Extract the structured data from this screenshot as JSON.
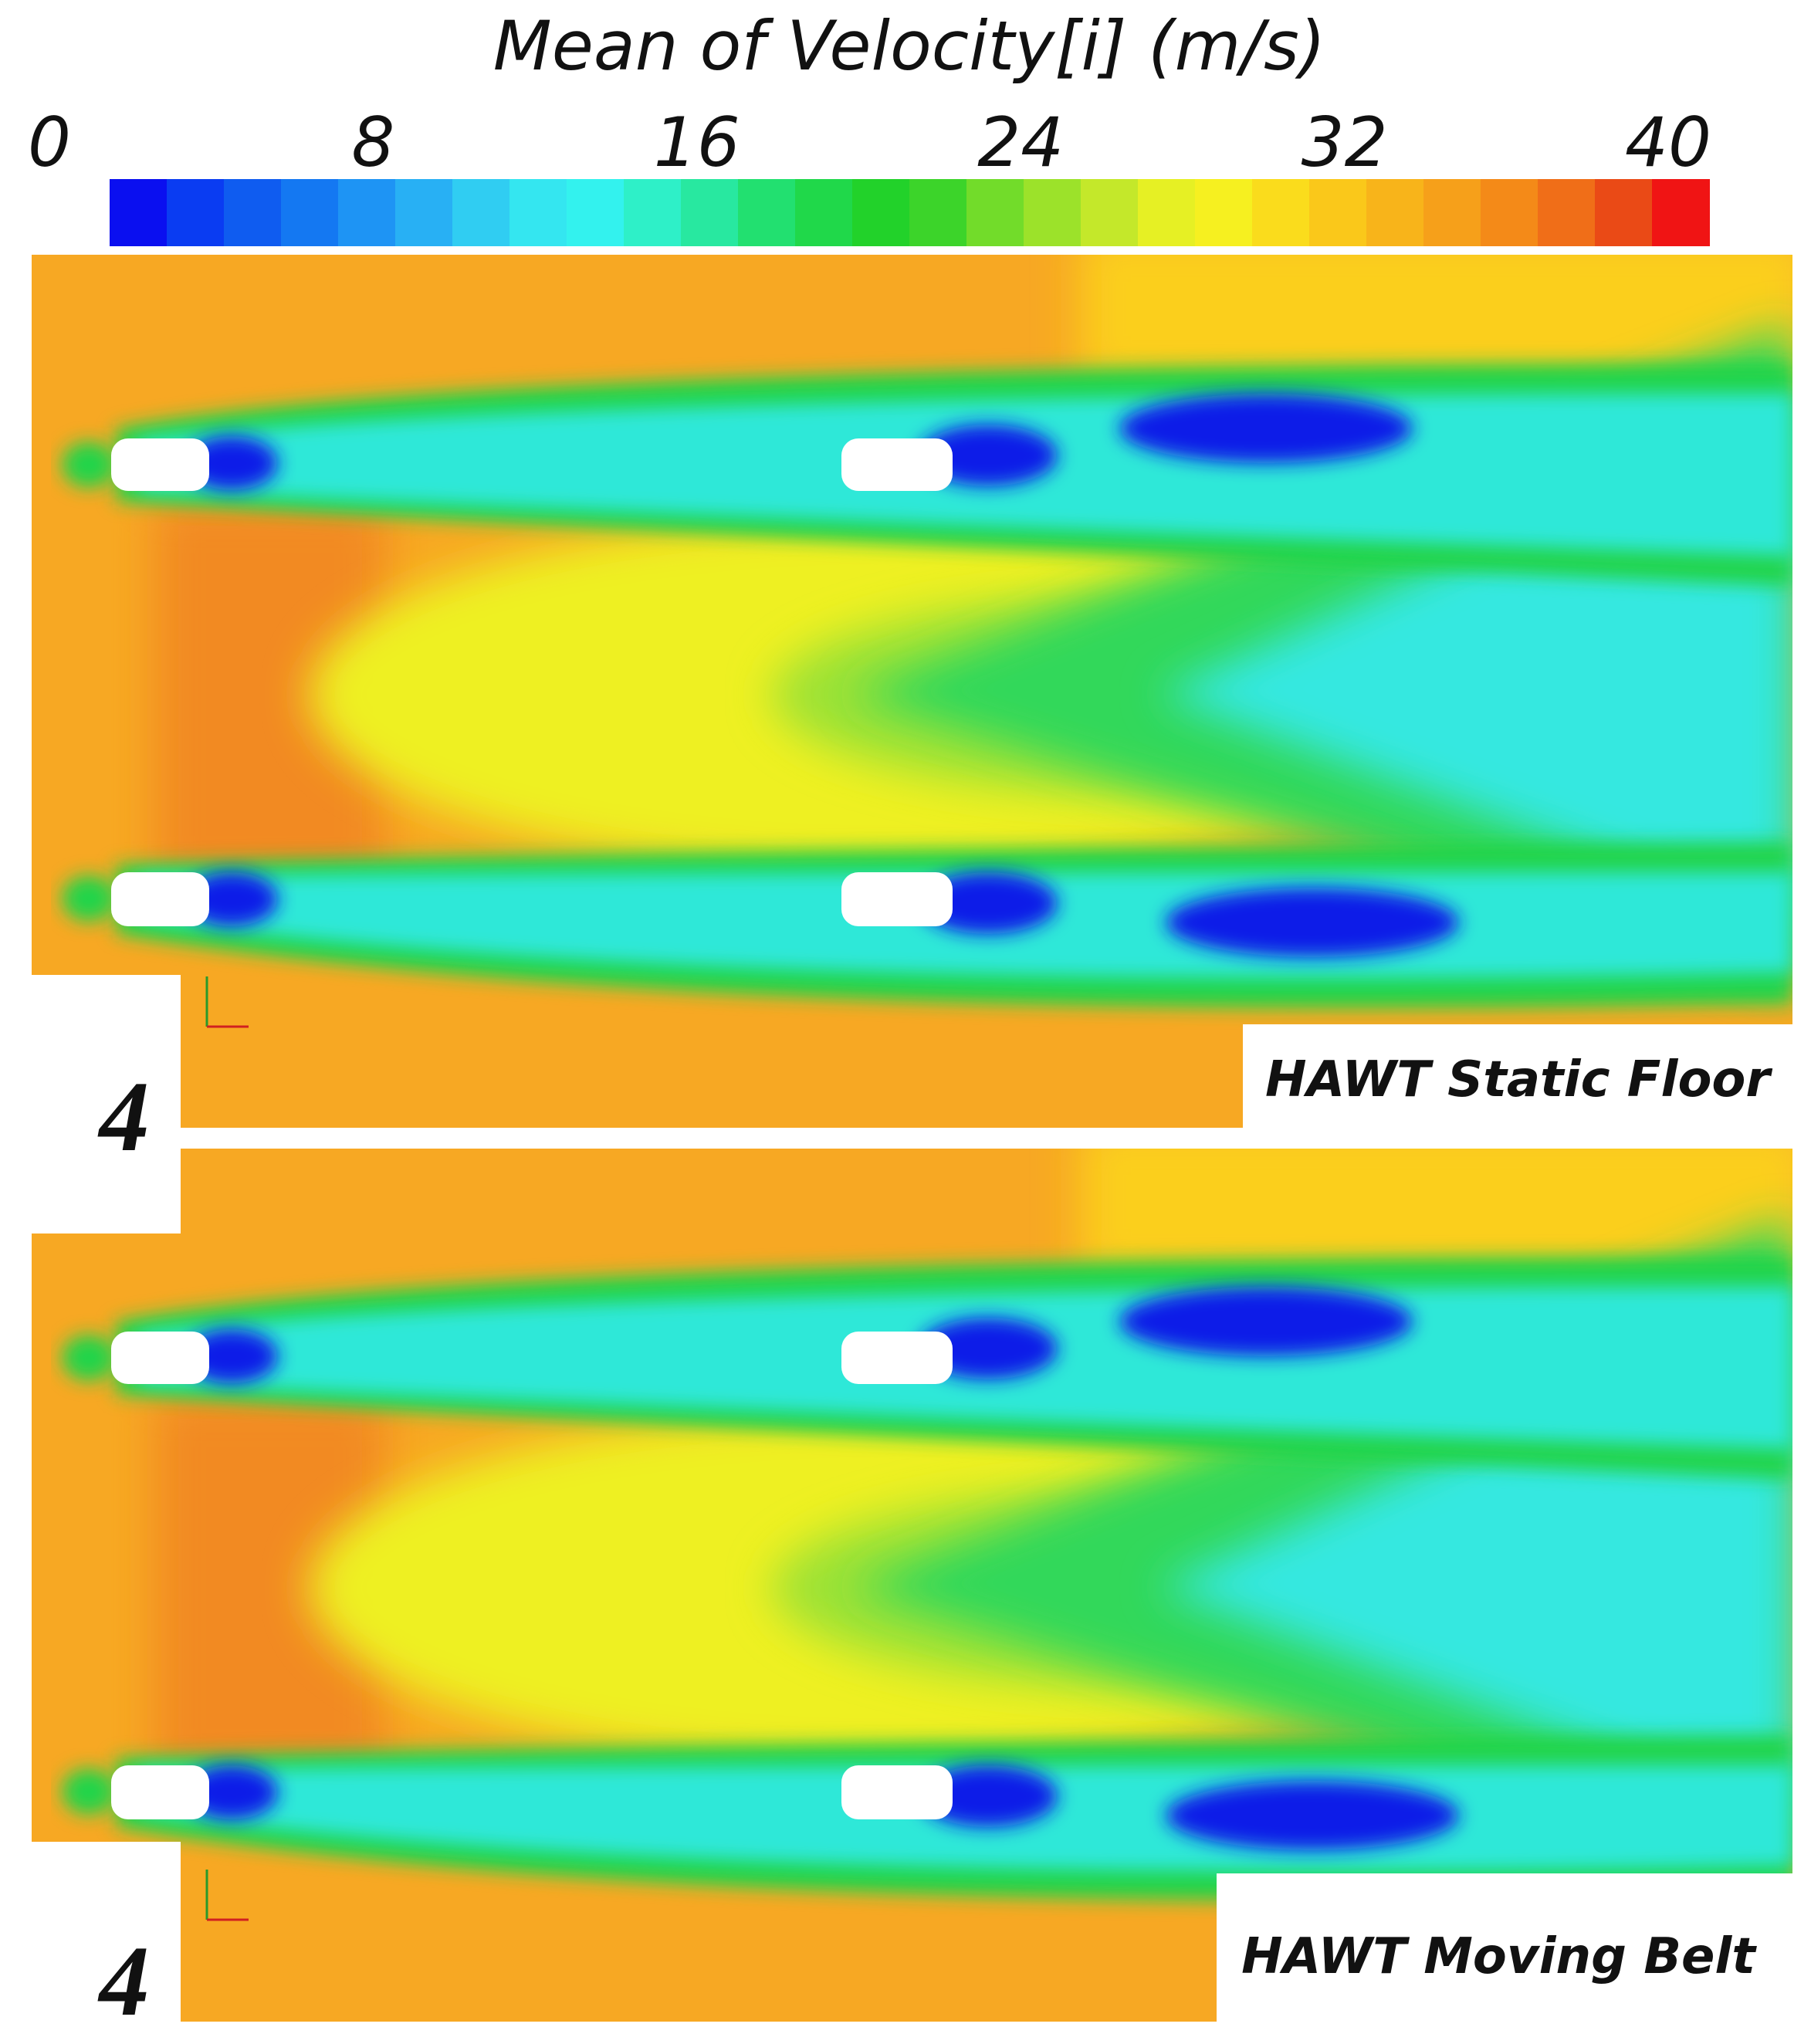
{
  "colorbar": {
    "title": "Mean of Velocity[i] (m/s)",
    "lim": [
      0,
      40
    ],
    "ticks": [
      0,
      8,
      16,
      24,
      32,
      40
    ],
    "colors": [
      "#0a0ff0",
      "#0a3cf2",
      "#0f5cf0",
      "#1478f2",
      "#1e94f4",
      "#28b0f4",
      "#30cdf2",
      "#34e6f0",
      "#33f2ee",
      "#2ef0c8",
      "#28e8a0",
      "#22e070",
      "#20d84a",
      "#22d22a",
      "#3cd42a",
      "#72dc2a",
      "#9ce22a",
      "#c4e82a",
      "#e6f024",
      "#f6f020",
      "#fadc1c",
      "#fac81a",
      "#f8b41a",
      "#f6a01a",
      "#f48a18",
      "#f06e18",
      "#ea4a16",
      "#f01414"
    ]
  },
  "panels": [
    {
      "number": "4",
      "label": "HAWT Static Floor"
    },
    {
      "number": "4",
      "label": "HAWT Moving Belt"
    }
  ]
}
